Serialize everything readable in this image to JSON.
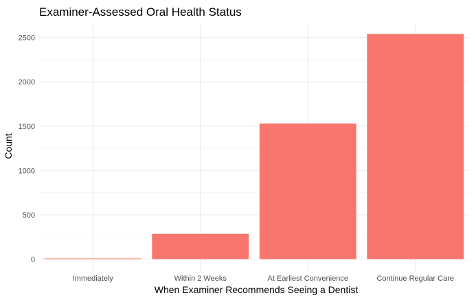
{
  "chart_data": {
    "type": "bar",
    "title": "Examiner-Assessed Oral Health Status",
    "xlabel": "When Examiner Recommends Seeing a Dentist",
    "ylabel": "Count",
    "categories": [
      "Immediately",
      "Within 2 Weeks",
      "At Earliest Convenience",
      "Continue Regular Care"
    ],
    "values": [
      8,
      285,
      1530,
      2540
    ],
    "ylim": [
      0,
      2600
    ],
    "yticks": [
      0,
      500,
      1000,
      1500,
      2000,
      2500
    ],
    "grid": true,
    "bar_color": "#F8766D",
    "legend": "none"
  }
}
